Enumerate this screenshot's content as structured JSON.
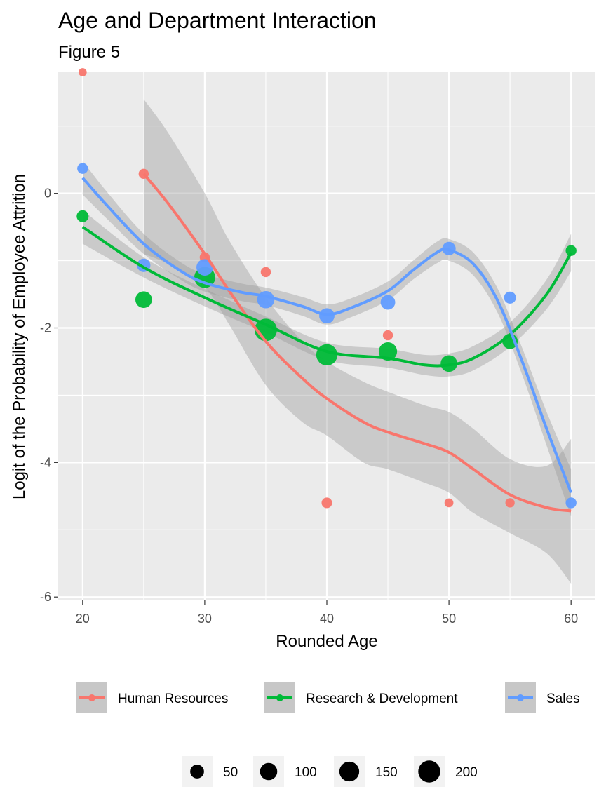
{
  "chart_data": {
    "type": "scatter",
    "title": "Age and Department Interaction",
    "subtitle": "Figure 5",
    "xlabel": "Rounded Age",
    "ylabel": "Logit of the Probability of Employee Attrition",
    "xlim": [
      18,
      62
    ],
    "ylim": [
      -6.05,
      1.8
    ],
    "x_ticks": [
      20,
      30,
      40,
      50,
      60
    ],
    "y_ticks": [
      -6,
      -4,
      -2,
      0
    ],
    "x_tick_labels": [
      "20",
      "30",
      "40",
      "50",
      "60"
    ],
    "y_tick_labels": [
      "-6",
      "-4",
      "-2",
      "0"
    ],
    "grid": true,
    "legend_position": "bottom",
    "size_legend": {
      "values": [
        50,
        100,
        150,
        200
      ],
      "labels": [
        "50",
        "100",
        "150",
        "200"
      ]
    },
    "series": [
      {
        "name": "Human Resources",
        "color": "#F8766D",
        "points": [
          {
            "x": 20,
            "y": 1.8,
            "n": 5
          },
          {
            "x": 25,
            "y": 0.29,
            "n": 15
          },
          {
            "x": 30,
            "y": -0.95,
            "n": 15
          },
          {
            "x": 35,
            "y": -1.17,
            "n": 15
          },
          {
            "x": 40,
            "y": -4.6,
            "n": 18
          },
          {
            "x": 45,
            "y": -2.11,
            "n": 15
          },
          {
            "x": 50,
            "y": -4.6,
            "n": 8
          },
          {
            "x": 55,
            "y": -4.6,
            "n": 10
          }
        ],
        "smooth": [
          [
            25,
            0.29
          ],
          [
            27,
            -0.15
          ],
          [
            30,
            -0.9
          ],
          [
            32,
            -1.45
          ],
          [
            35,
            -2.2
          ],
          [
            38,
            -2.75
          ],
          [
            40,
            -3.05
          ],
          [
            43,
            -3.4
          ],
          [
            45,
            -3.55
          ],
          [
            48,
            -3.72
          ],
          [
            50,
            -3.85
          ],
          [
            52,
            -4.1
          ],
          [
            55,
            -4.48
          ],
          [
            58,
            -4.67
          ],
          [
            60,
            -4.72
          ]
        ],
        "band": [
          [
            25,
            1.4,
            -0.9
          ],
          [
            27,
            0.9,
            -1.05
          ],
          [
            30,
            0.0,
            -1.4
          ],
          [
            32,
            -0.7,
            -1.95
          ],
          [
            35,
            -1.55,
            -2.85
          ],
          [
            38,
            -2.2,
            -3.4
          ],
          [
            40,
            -2.5,
            -3.6
          ],
          [
            43,
            -2.8,
            -4.0
          ],
          [
            45,
            -2.95,
            -4.1
          ],
          [
            48,
            -3.15,
            -4.3
          ],
          [
            50,
            -3.25,
            -4.45
          ],
          [
            52,
            -3.5,
            -4.75
          ],
          [
            55,
            -3.95,
            -5.05
          ],
          [
            58,
            -4.05,
            -5.35
          ],
          [
            60,
            -3.65,
            -5.8
          ]
        ]
      },
      {
        "name": "Research & Development",
        "color": "#00BA38",
        "points": [
          {
            "x": 20,
            "y": -0.34,
            "n": 30
          },
          {
            "x": 25,
            "y": -1.58,
            "n": 90
          },
          {
            "x": 30,
            "y": -1.25,
            "n": 175
          },
          {
            "x": 35,
            "y": -2.03,
            "n": 210
          },
          {
            "x": 40,
            "y": -2.4,
            "n": 180
          },
          {
            "x": 45,
            "y": -2.35,
            "n": 120
          },
          {
            "x": 50,
            "y": -2.53,
            "n": 90
          },
          {
            "x": 55,
            "y": -2.2,
            "n": 70
          },
          {
            "x": 60,
            "y": -0.85,
            "n": 20
          }
        ],
        "smooth": [
          [
            20,
            -0.5
          ],
          [
            25,
            -1.1
          ],
          [
            30,
            -1.55
          ],
          [
            35,
            -1.95
          ],
          [
            40,
            -2.35
          ],
          [
            45,
            -2.45
          ],
          [
            48,
            -2.55
          ],
          [
            50,
            -2.55
          ],
          [
            52,
            -2.45
          ],
          [
            55,
            -2.1
          ],
          [
            58,
            -1.5
          ],
          [
            60,
            -0.88
          ]
        ],
        "band": [
          [
            20,
            -0.25,
            -0.75
          ],
          [
            25,
            -0.95,
            -1.25
          ],
          [
            30,
            -1.42,
            -1.68
          ],
          [
            35,
            -1.83,
            -2.07
          ],
          [
            40,
            -2.22,
            -2.48
          ],
          [
            45,
            -2.31,
            -2.59
          ],
          [
            48,
            -2.4,
            -2.7
          ],
          [
            50,
            -2.38,
            -2.72
          ],
          [
            52,
            -2.27,
            -2.63
          ],
          [
            55,
            -1.92,
            -2.28
          ],
          [
            58,
            -1.28,
            -1.72
          ],
          [
            60,
            -0.6,
            -1.16
          ]
        ]
      },
      {
        "name": "Sales",
        "color": "#619CFF",
        "points": [
          {
            "x": 20,
            "y": 0.37,
            "n": 20
          },
          {
            "x": 25,
            "y": -1.07,
            "n": 45
          },
          {
            "x": 30,
            "y": -1.1,
            "n": 90
          },
          {
            "x": 35,
            "y": -1.58,
            "n": 100
          },
          {
            "x": 40,
            "y": -1.82,
            "n": 70
          },
          {
            "x": 45,
            "y": -1.62,
            "n": 60
          },
          {
            "x": 50,
            "y": -0.82,
            "n": 45
          },
          {
            "x": 55,
            "y": -1.55,
            "n": 30
          },
          {
            "x": 60,
            "y": -4.6,
            "n": 20
          }
        ],
        "smooth": [
          [
            20,
            0.23
          ],
          [
            22,
            -0.18
          ],
          [
            25,
            -0.75
          ],
          [
            28,
            -1.15
          ],
          [
            30,
            -1.33
          ],
          [
            33,
            -1.47
          ],
          [
            35,
            -1.53
          ],
          [
            38,
            -1.68
          ],
          [
            40,
            -1.8
          ],
          [
            42,
            -1.7
          ],
          [
            45,
            -1.45
          ],
          [
            47,
            -1.15
          ],
          [
            49,
            -0.88
          ],
          [
            50,
            -0.84
          ],
          [
            52,
            -1.05
          ],
          [
            54,
            -1.6
          ],
          [
            56,
            -2.5
          ],
          [
            58,
            -3.5
          ],
          [
            60,
            -4.45
          ]
        ],
        "band": [
          [
            20,
            0.48,
            -0.02
          ],
          [
            22,
            0.02,
            -0.38
          ],
          [
            25,
            -0.6,
            -0.9
          ],
          [
            28,
            -1.02,
            -1.28
          ],
          [
            30,
            -1.2,
            -1.46
          ],
          [
            33,
            -1.34,
            -1.6
          ],
          [
            35,
            -1.4,
            -1.66
          ],
          [
            38,
            -1.54,
            -1.82
          ],
          [
            40,
            -1.65,
            -1.95
          ],
          [
            42,
            -1.56,
            -1.84
          ],
          [
            45,
            -1.31,
            -1.59
          ],
          [
            47,
            -1.01,
            -1.29
          ],
          [
            49,
            -0.72,
            -1.04
          ],
          [
            50,
            -0.68,
            -1.0
          ],
          [
            52,
            -0.88,
            -1.22
          ],
          [
            54,
            -1.42,
            -1.78
          ],
          [
            56,
            -2.3,
            -2.7
          ],
          [
            58,
            -3.25,
            -3.75
          ],
          [
            60,
            -4.1,
            -4.8
          ]
        ]
      }
    ]
  }
}
